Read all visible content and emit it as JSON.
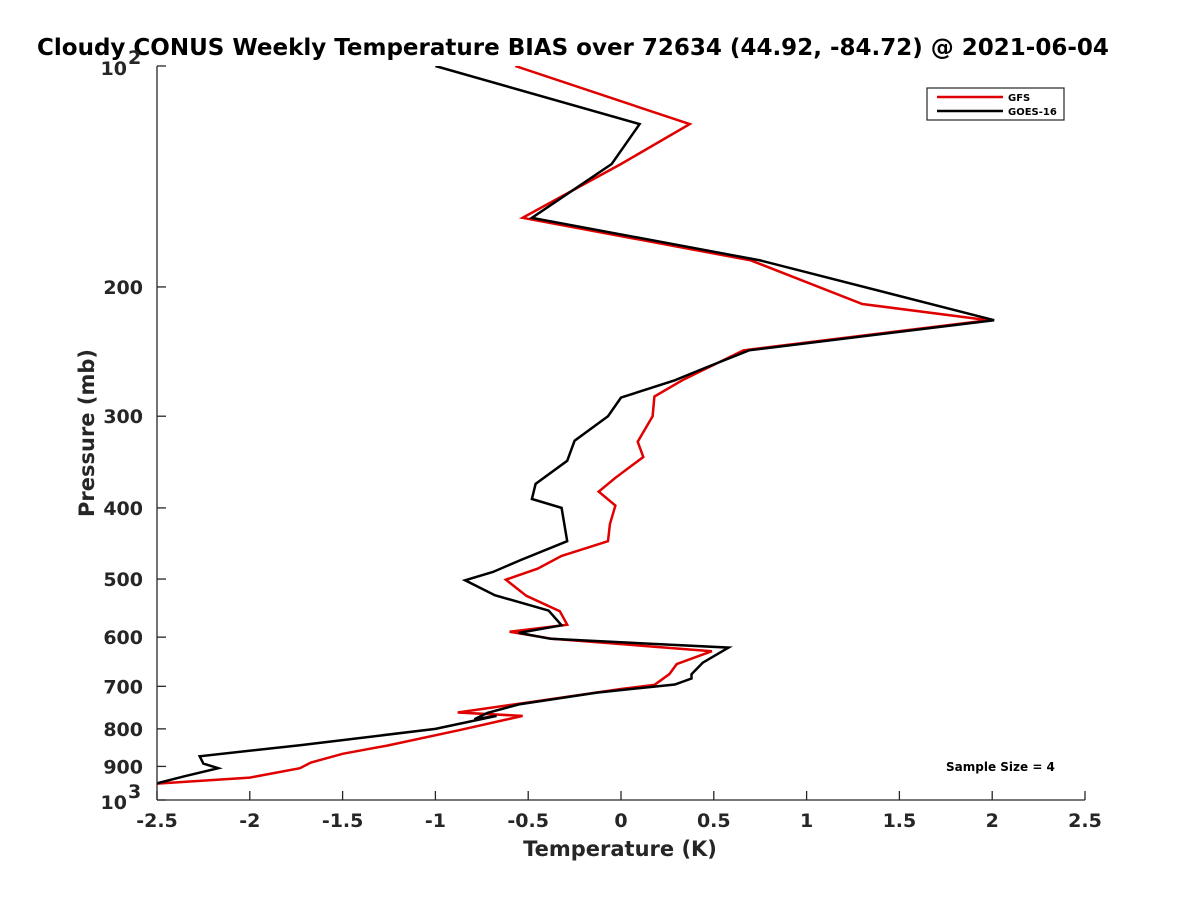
{
  "chart_data": {
    "type": "line",
    "title": "Cloudy CONUS Weekly Temperature BIAS over 72634 (44.92, -84.72) @ 2021-06-04",
    "xlabel": "Temperature (K)",
    "ylabel": "Pressure (mb)",
    "xlim": [
      -2.5,
      2.5
    ],
    "ylim": [
      100,
      1000
    ],
    "y_scale": "log",
    "y_reversed": true,
    "grid": false,
    "legend_position": "top-right",
    "x_ticks": [
      "-2.5",
      "-2",
      "-1.5",
      "-1",
      "-0.5",
      "0",
      "0.5",
      "1",
      "1.5",
      "2",
      "2.5"
    ],
    "y_ticks": [
      {
        "value": 100,
        "base": "10",
        "exp": "2"
      },
      {
        "value": 200,
        "label": "200"
      },
      {
        "value": 300,
        "label": "300"
      },
      {
        "value": 400,
        "label": "400"
      },
      {
        "value": 500,
        "label": "500"
      },
      {
        "value": 600,
        "label": "600"
      },
      {
        "value": 700,
        "label": "700"
      },
      {
        "value": 800,
        "label": "800"
      },
      {
        "value": 900,
        "label": "900"
      },
      {
        "value": 1000,
        "base": "10",
        "exp": "3"
      }
    ],
    "annotation": "Sample Size = 4",
    "series": [
      {
        "name": "GFS",
        "color": "#e00000",
        "points": [
          [
            -0.57,
            100
          ],
          [
            0.37,
            120
          ],
          [
            0.0,
            136
          ],
          [
            -0.53,
            161
          ],
          [
            0.7,
            184
          ],
          [
            1.3,
            211
          ],
          [
            1.98,
            222
          ],
          [
            0.66,
            244
          ],
          [
            0.33,
            268
          ],
          [
            0.18,
            282
          ],
          [
            0.17,
            300
          ],
          [
            0.09,
            325
          ],
          [
            0.12,
            341
          ],
          [
            -0.03,
            364
          ],
          [
            -0.12,
            380
          ],
          [
            -0.03,
            397
          ],
          [
            -0.06,
            421
          ],
          [
            -0.07,
            444
          ],
          [
            -0.32,
            465
          ],
          [
            -0.45,
            484
          ],
          [
            -0.62,
            501
          ],
          [
            -0.51,
            527
          ],
          [
            -0.33,
            553
          ],
          [
            -0.29,
            577
          ],
          [
            -0.6,
            590
          ],
          [
            -0.37,
            603
          ],
          [
            0.49,
            627
          ],
          [
            0.3,
            653
          ],
          [
            0.26,
            674
          ],
          [
            0.18,
            697
          ],
          [
            0.0,
            706
          ],
          [
            -0.27,
            722
          ],
          [
            -0.51,
            737
          ],
          [
            -0.88,
            760
          ],
          [
            -0.53,
            768
          ],
          [
            -0.86,
            802
          ],
          [
            -1.26,
            843
          ],
          [
            -1.5,
            865
          ],
          [
            -1.67,
            889
          ],
          [
            -1.73,
            905
          ],
          [
            -2.0,
            932
          ],
          [
            -2.5,
            950
          ]
        ]
      },
      {
        "name": "GOES-16",
        "color": "#000000",
        "points": [
          [
            -1.0,
            100
          ],
          [
            0.1,
            120
          ],
          [
            -0.05,
            136
          ],
          [
            -0.48,
            161
          ],
          [
            0.75,
            184
          ],
          [
            2.01,
            222
          ],
          [
            0.69,
            244
          ],
          [
            0.45,
            258
          ],
          [
            0.29,
            268
          ],
          [
            0.0,
            283
          ],
          [
            -0.07,
            300
          ],
          [
            -0.25,
            324
          ],
          [
            -0.29,
            345
          ],
          [
            -0.46,
            371
          ],
          [
            -0.48,
            389
          ],
          [
            -0.32,
            400
          ],
          [
            -0.29,
            444
          ],
          [
            -0.54,
            471
          ],
          [
            -0.69,
            489
          ],
          [
            -0.84,
            502
          ],
          [
            -0.68,
            526
          ],
          [
            -0.39,
            552
          ],
          [
            -0.32,
            578
          ],
          [
            -0.55,
            592
          ],
          [
            -0.38,
            603
          ],
          [
            0.58,
            620
          ],
          [
            0.44,
            650
          ],
          [
            0.38,
            674
          ],
          [
            0.38,
            683
          ],
          [
            0.29,
            696
          ],
          [
            -0.13,
            714
          ],
          [
            -0.55,
            741
          ],
          [
            -0.72,
            761
          ],
          [
            -0.79,
            776
          ],
          [
            -0.67,
            768
          ],
          [
            -1.0,
            800
          ],
          [
            -1.73,
            842
          ],
          [
            -2.27,
            872
          ],
          [
            -2.25,
            892
          ],
          [
            -2.17,
            905
          ],
          [
            -2.35,
            928
          ],
          [
            -2.5,
            949
          ]
        ]
      }
    ]
  }
}
